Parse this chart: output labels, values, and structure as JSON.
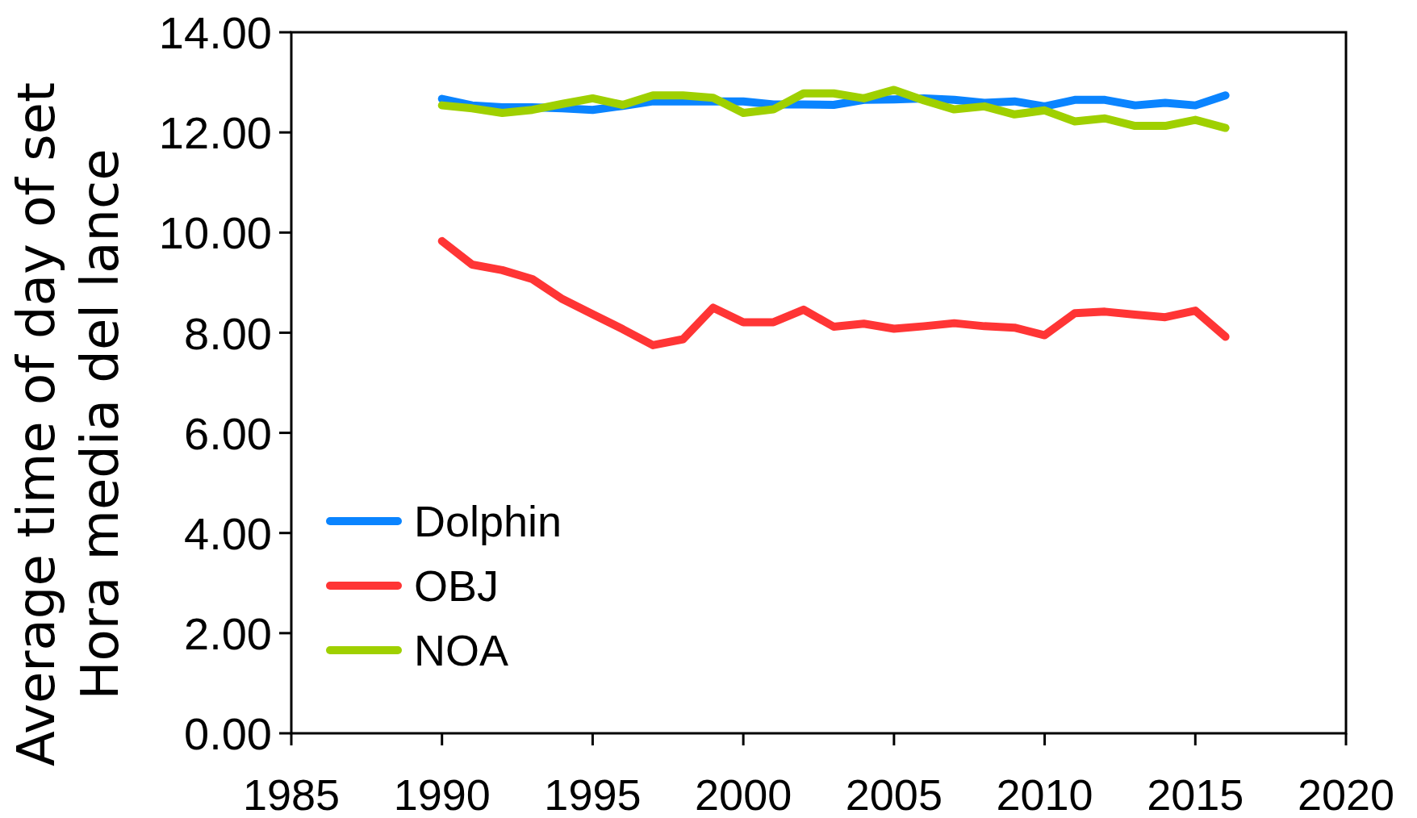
{
  "chart_data": {
    "type": "line",
    "ylabel": "Average time of day of set\nHora media del lance",
    "x": [
      1990,
      1991,
      1992,
      1993,
      1994,
      1995,
      1996,
      1997,
      1998,
      1999,
      2000,
      2001,
      2002,
      2003,
      2004,
      2005,
      2006,
      2007,
      2008,
      2009,
      2010,
      2011,
      2012,
      2013,
      2014,
      2015,
      2016
    ],
    "series": [
      {
        "name": "Dolphin",
        "color": "#0a84ff",
        "values": [
          12.67,
          12.54,
          12.5,
          12.5,
          12.48,
          12.45,
          12.53,
          12.62,
          12.62,
          12.62,
          12.62,
          12.56,
          12.56,
          12.55,
          12.65,
          12.66,
          12.68,
          12.65,
          12.59,
          12.62,
          12.52,
          12.65,
          12.65,
          12.54,
          12.59,
          12.54,
          12.74
        ]
      },
      {
        "name": "OBJ",
        "color": "#ff3535",
        "values": [
          9.83,
          9.36,
          9.25,
          9.07,
          8.67,
          8.37,
          8.07,
          7.75,
          7.87,
          8.5,
          8.21,
          8.21,
          8.46,
          8.12,
          8.18,
          8.08,
          8.13,
          8.19,
          8.13,
          8.1,
          7.95,
          8.39,
          8.42,
          8.36,
          8.31,
          8.44,
          7.92
        ]
      },
      {
        "name": "NOA",
        "color": "#9fd000",
        "values": [
          12.54,
          12.48,
          12.39,
          12.45,
          12.57,
          12.68,
          12.55,
          12.74,
          12.74,
          12.69,
          12.39,
          12.46,
          12.78,
          12.78,
          12.68,
          12.85,
          12.64,
          12.46,
          12.52,
          12.36,
          12.44,
          12.22,
          12.28,
          12.13,
          12.13,
          12.25,
          12.09
        ]
      }
    ],
    "xlim": [
      1985,
      2020
    ],
    "xticks": [
      1985,
      1990,
      1995,
      2000,
      2005,
      2010,
      2015,
      2020
    ],
    "ylim": [
      0,
      14
    ],
    "yticks": [
      {
        "value": 0,
        "label": "0.00"
      },
      {
        "value": 2,
        "label": "2.00"
      },
      {
        "value": 4,
        "label": "4.00"
      },
      {
        "value": 6,
        "label": "6.00"
      },
      {
        "value": 8,
        "label": "8.00"
      },
      {
        "value": 10,
        "label": "10.00"
      },
      {
        "value": 12,
        "label": "12.00"
      },
      {
        "value": 14,
        "label": "14.00"
      }
    ],
    "grid": false,
    "legend": "bottom left",
    "line_style": "solid"
  }
}
